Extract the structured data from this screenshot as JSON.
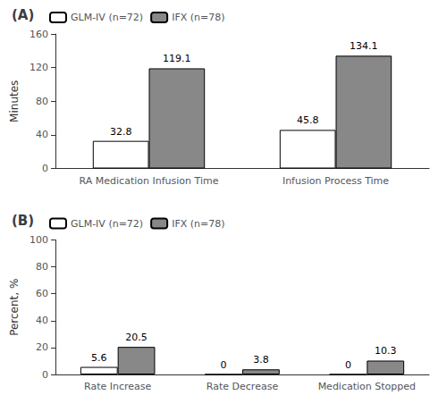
{
  "chart_data": [
    {
      "type": "bar",
      "title": "(A)",
      "ylabel": "Minutes",
      "categories": [
        "RA Medication Infusion Time",
        "Infusion Process Time"
      ],
      "series": [
        {
          "name": "GLM-IV (n=72)",
          "color": "white",
          "values": [
            32.8,
            45.8
          ]
        },
        {
          "name": "IFX (n=78)",
          "color": "#888888",
          "values": [
            119.1,
            134.1
          ]
        }
      ],
      "ylim": [
        0,
        160
      ],
      "yticks": [
        0,
        40,
        80,
        120,
        160
      ],
      "grid": false,
      "legend": "upper left",
      "data_labels": true
    },
    {
      "type": "bar",
      "title": "(B)",
      "ylabel": "Percent, %",
      "categories": [
        "Rate Increase",
        "Rate Decrease",
        "Medication Stopped"
      ],
      "series": [
        {
          "name": "GLM-IV (n=72)",
          "color": "white",
          "values": [
            5.6,
            0,
            0
          ]
        },
        {
          "name": "IFX (n=78)",
          "color": "#888888",
          "values": [
            20.5,
            3.8,
            10.3
          ]
        }
      ],
      "ylim": [
        0,
        100
      ],
      "yticks": [
        0,
        20,
        40,
        60,
        80,
        100
      ],
      "grid": false,
      "legend": "upper left",
      "data_labels": true
    }
  ]
}
